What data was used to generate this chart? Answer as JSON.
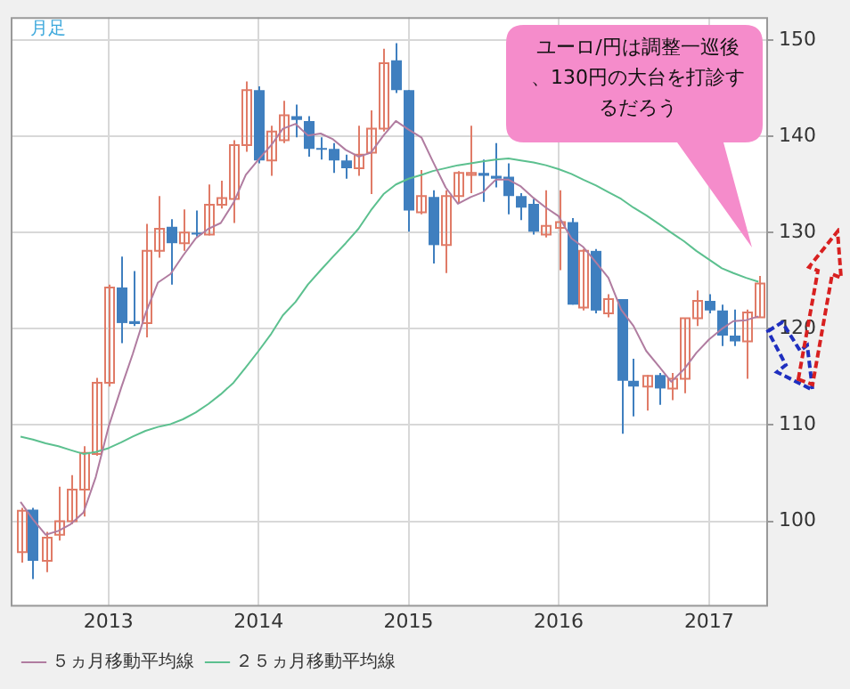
{
  "chart_data": {
    "type": "candlestick",
    "title": "月足",
    "x": [
      "2012-06",
      "2012-07",
      "2012-08",
      "2012-09",
      "2012-10",
      "2012-11",
      "2012-12",
      "2013-01",
      "2013-02",
      "2013-03",
      "2013-04",
      "2013-05",
      "2013-06",
      "2013-07",
      "2013-08",
      "2013-09",
      "2013-10",
      "2013-11",
      "2013-12",
      "2014-01",
      "2014-02",
      "2014-03",
      "2014-04",
      "2014-05",
      "2014-06",
      "2014-07",
      "2014-08",
      "2014-09",
      "2014-10",
      "2014-11",
      "2014-12",
      "2015-01",
      "2015-02",
      "2015-03",
      "2015-04",
      "2015-05",
      "2015-06",
      "2015-07",
      "2015-08",
      "2015-09",
      "2015-10",
      "2015-11",
      "2015-12",
      "2016-01",
      "2016-02",
      "2016-03",
      "2016-04",
      "2016-05",
      "2016-06",
      "2016-07",
      "2016-08",
      "2016-09",
      "2016-10",
      "2016-11",
      "2016-12",
      "2017-01",
      "2017-02",
      "2017-03",
      "2017-04",
      "2017-05"
    ],
    "ohlc": [
      [
        96.8,
        101.4,
        95.7,
        101.1
      ],
      [
        101.2,
        101.4,
        94.0,
        95.9
      ],
      [
        95.9,
        98.9,
        94.7,
        98.3
      ],
      [
        98.6,
        103.6,
        98.0,
        100.0
      ],
      [
        100.0,
        104.8,
        99.7,
        103.3
      ],
      [
        103.3,
        107.8,
        100.5,
        107.1
      ],
      [
        107.0,
        114.9,
        106.8,
        114.4
      ],
      [
        114.4,
        124.6,
        114.0,
        124.3
      ],
      [
        124.3,
        127.5,
        118.5,
        120.6
      ],
      [
        120.8,
        126.0,
        120.3,
        120.5
      ],
      [
        120.6,
        130.9,
        119.1,
        128.1
      ],
      [
        128.1,
        133.8,
        127.4,
        130.4
      ],
      [
        130.6,
        131.4,
        124.6,
        128.9
      ],
      [
        128.9,
        132.4,
        128.1,
        130.0
      ],
      [
        130.0,
        132.3,
        129.6,
        129.8
      ],
      [
        129.8,
        135.0,
        129.7,
        132.9
      ],
      [
        132.9,
        135.4,
        132.5,
        133.6
      ],
      [
        133.5,
        139.6,
        131.0,
        139.1
      ],
      [
        139.1,
        145.7,
        138.4,
        144.8
      ],
      [
        144.8,
        145.2,
        137.2,
        137.5
      ],
      [
        137.5,
        141.1,
        135.9,
        140.5
      ],
      [
        139.6,
        143.7,
        139.3,
        142.2
      ],
      [
        142.1,
        143.3,
        139.9,
        141.7
      ],
      [
        141.6,
        142.1,
        137.9,
        138.7
      ],
      [
        138.8,
        139.9,
        137.6,
        138.6
      ],
      [
        138.7,
        139.3,
        136.2,
        137.5
      ],
      [
        137.5,
        138.1,
        135.6,
        136.7
      ],
      [
        136.7,
        141.1,
        135.9,
        138.1
      ],
      [
        138.3,
        142.7,
        134.0,
        140.8
      ],
      [
        140.8,
        149.1,
        140.5,
        147.6
      ],
      [
        147.9,
        149.7,
        144.5,
        144.8
      ],
      [
        144.8,
        144.8,
        130.1,
        132.3
      ],
      [
        132.1,
        136.5,
        131.9,
        133.8
      ],
      [
        133.7,
        134.4,
        126.8,
        128.7
      ],
      [
        128.7,
        134.4,
        125.8,
        133.8
      ],
      [
        133.8,
        136.4,
        133.0,
        136.2
      ],
      [
        136.0,
        141.1,
        134.1,
        136.2
      ],
      [
        136.2,
        137.6,
        133.2,
        135.9
      ],
      [
        135.9,
        139.3,
        134.7,
        135.6
      ],
      [
        135.8,
        137.2,
        131.9,
        133.8
      ],
      [
        133.8,
        134.1,
        131.3,
        132.6
      ],
      [
        133.0,
        133.5,
        129.8,
        130.1
      ],
      [
        129.8,
        134.4,
        129.5,
        130.7
      ],
      [
        130.5,
        134.4,
        126.1,
        131.1
      ],
      [
        131.1,
        131.5,
        122.5,
        122.5
      ],
      [
        122.2,
        128.3,
        121.9,
        128.1
      ],
      [
        128.1,
        128.3,
        121.6,
        121.9
      ],
      [
        121.6,
        123.6,
        121.2,
        123.1
      ],
      [
        123.1,
        123.1,
        109.1,
        114.6
      ],
      [
        114.6,
        116.9,
        110.9,
        114.0
      ],
      [
        114.0,
        115.2,
        111.5,
        115.1
      ],
      [
        115.2,
        115.4,
        112.1,
        113.8
      ],
      [
        113.8,
        115.4,
        112.6,
        114.8
      ],
      [
        114.8,
        121.1,
        113.3,
        121.1
      ],
      [
        121.1,
        124.0,
        120.3,
        122.9
      ],
      [
        122.9,
        123.6,
        121.6,
        121.9
      ],
      [
        121.9,
        122.5,
        118.2,
        119.3
      ],
      [
        119.3,
        122.0,
        118.2,
        118.7
      ],
      [
        118.7,
        122.0,
        114.8,
        121.7
      ],
      [
        121.2,
        125.5,
        121.2,
        124.7
      ]
    ],
    "colors": [
      "#e07b67",
      "#3f7fbf",
      "#e07b67",
      "#e07b67",
      "#e07b67",
      "#e07b67",
      "#e07b67",
      "#e07b67",
      "#3f7fbf",
      "#3f7fbf",
      "#e07b67",
      "#e07b67",
      "#3f7fbf",
      "#e07b67",
      "#3f7fbf",
      "#e07b67",
      "#e07b67",
      "#e07b67",
      "#e07b67",
      "#3f7fbf",
      "#e07b67",
      "#e07b67",
      "#3f7fbf",
      "#3f7fbf",
      "#3f7fbf",
      "#3f7fbf",
      "#3f7fbf",
      "#e07b67",
      "#e07b67",
      "#e07b67",
      "#3f7fbf",
      "#3f7fbf",
      "#e07b67",
      "#3f7fbf",
      "#e07b67",
      "#e07b67",
      "#e07b67",
      "#3f7fbf",
      "#3f7fbf",
      "#3f7fbf",
      "#3f7fbf",
      "#3f7fbf",
      "#e07b67",
      "#e07b67",
      "#3f7fbf",
      "#e07b67",
      "#3f7fbf",
      "#e07b67",
      "#3f7fbf",
      "#3f7fbf",
      "#e07b67",
      "#3f7fbf",
      "#e07b67",
      "#e07b67",
      "#e07b67",
      "#3f7fbf",
      "#3f7fbf",
      "#3f7fbf",
      "#e07b67",
      "#e07b67"
    ],
    "series": [
      {
        "name": "５ヵ月移動平均線",
        "type": "line",
        "color": "#b07ca0",
        "values": [
          102.0,
          100.2,
          98.6,
          99.0,
          99.7,
          100.9,
          104.6,
          109.8,
          113.9,
          117.4,
          121.6,
          124.8,
          125.7,
          127.6,
          129.4,
          130.4,
          131.0,
          133.1,
          136.0,
          137.6,
          139.1,
          140.8,
          141.3,
          140.1,
          140.3,
          139.7,
          138.6,
          137.9,
          138.3,
          140.1,
          141.6,
          140.7,
          139.9,
          137.4,
          134.7,
          133.0,
          133.7,
          134.2,
          135.5,
          135.5,
          134.8,
          133.6,
          132.6,
          131.7,
          129.4,
          128.5,
          126.9,
          125.3,
          122.0,
          120.3,
          117.7,
          116.1,
          114.5,
          115.8,
          117.5,
          118.9,
          120.0,
          120.8,
          120.9,
          121.3
        ]
      },
      {
        "name": "２５ヵ月移動平均線",
        "type": "line",
        "color": "#5cc08f",
        "values": [
          108.8,
          108.5,
          108.1,
          107.8,
          107.4,
          107.0,
          107.2,
          107.6,
          108.2,
          108.8,
          109.4,
          109.8,
          110.1,
          110.6,
          111.3,
          112.2,
          113.2,
          114.4,
          116.0,
          117.7,
          119.5,
          121.4,
          122.8,
          124.6,
          126.1,
          127.5,
          128.9,
          130.4,
          132.3,
          134.0,
          135.0,
          135.6,
          136.0,
          136.4,
          136.7,
          137.0,
          137.2,
          137.4,
          137.6,
          137.7,
          137.5,
          137.3,
          137.0,
          136.6,
          136.1,
          135.5,
          134.9,
          134.2,
          133.5,
          132.6,
          131.8,
          130.9,
          130.0,
          129.1,
          128.1,
          127.2,
          126.3,
          125.8,
          125.3,
          124.9
        ]
      }
    ],
    "xlim": [
      "2012-05-08",
      "2017-05-20"
    ],
    "xticks": [
      "2013",
      "2014",
      "2015",
      "2016",
      "2017"
    ],
    "ylim": [
      91.3,
      152.4
    ],
    "yticks": [
      100,
      110,
      120,
      130,
      140,
      150
    ],
    "grid": true,
    "legend": "bottom",
    "marker": "none",
    "line_style": "solid",
    "annotations": [
      "ユーロ/円は調整一巡後、130円の大台を打診するだろう"
    ]
  }
}
